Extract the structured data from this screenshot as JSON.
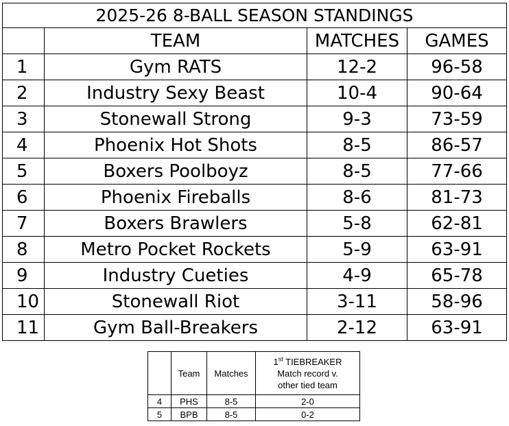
{
  "standings": {
    "title": "2025-26 8-BALL SEASON STANDINGS",
    "columns": {
      "team": "TEAM",
      "matches": "MATCHES",
      "games": "GAMES"
    },
    "rows": [
      {
        "rank": "1",
        "team": "Gym RATS",
        "matches": "12-2",
        "games": "96-58"
      },
      {
        "rank": "2",
        "team": "Industry Sexy Beast",
        "matches": "10-4",
        "games": "90-64"
      },
      {
        "rank": "3",
        "team": "Stonewall Strong",
        "matches": "9-3",
        "games": "73-59"
      },
      {
        "rank": "4",
        "team": "Phoenix Hot Shots",
        "matches": "8-5",
        "games": "86-57"
      },
      {
        "rank": "5",
        "team": "Boxers Poolboyz",
        "matches": "8-5",
        "games": "77-66"
      },
      {
        "rank": "6",
        "team": "Phoenix Fireballs",
        "matches": "8-6",
        "games": "81-73"
      },
      {
        "rank": "7",
        "team": "Boxers Brawlers",
        "matches": "5-8",
        "games": "62-81"
      },
      {
        "rank": "8",
        "team": "Metro Pocket Rockets",
        "matches": "5-9",
        "games": "63-91"
      },
      {
        "rank": "9",
        "team": "Industry Cueties",
        "matches": "4-9",
        "games": "65-78"
      },
      {
        "rank": "10",
        "team": "Stonewall Riot",
        "matches": "3-11",
        "games": "58-96"
      },
      {
        "rank": "11",
        "team": "Gym Ball-Breakers",
        "matches": "2-12",
        "games": "63-91"
      }
    ]
  },
  "tiebreaker": {
    "columns": {
      "team": "Team",
      "matches": "Matches",
      "tb_sup": "st",
      "tb_line1": "1",
      "tb_line1_rest": " TIEBREAKER",
      "tb_line2": "Match record v.",
      "tb_line3": "other tied team"
    },
    "rows": [
      {
        "rank": "4",
        "team": "PHS",
        "matches": "8-5",
        "record": "2-0"
      },
      {
        "rank": "5",
        "team": "BPB",
        "matches": "8-5",
        "record": "0-2"
      }
    ]
  }
}
